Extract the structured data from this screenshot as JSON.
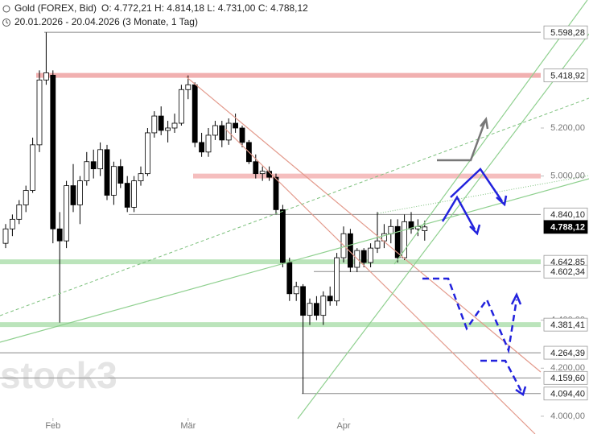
{
  "header": {
    "title": "Gold (FOREX, Bid)",
    "ohlc": "O: 4.772,21  H: 4.814,18  L: 4.731,00  C: 4.788,12",
    "range": "20.01.2026 - 20.04.2026 (3 Monate, 1 Tag)"
  },
  "chart_data": {
    "type": "candlestick",
    "watermark": "stock3",
    "categories": [
      null,
      null,
      null,
      null,
      null,
      null,
      null,
      "Feb",
      null,
      null,
      null,
      null,
      null,
      null,
      null,
      null,
      null,
      null,
      null,
      null,
      null,
      null,
      null,
      null,
      null,
      null,
      null,
      "Mär",
      null,
      null,
      null,
      null,
      null,
      null,
      null,
      null,
      null,
      null,
      null,
      null,
      null,
      null,
      null,
      null,
      null,
      null,
      null,
      null,
      null,
      null,
      "Apr",
      null,
      null,
      null,
      null,
      null,
      null,
      null,
      null,
      null,
      null,
      null,
      null
    ],
    "open": [
      4720,
      4780,
      4820,
      4880,
      4940,
      5130,
      5400,
      5420,
      4780,
      4730,
      4960,
      4880,
      4980,
      5060,
      5030,
      5110,
      4920,
      5040,
      4970,
      4870,
      4980,
      5010,
      5180,
      5250,
      5190,
      5200,
      5220,
      5360,
      5380,
      5140,
      5100,
      5170,
      5210,
      5150,
      5220,
      5200,
      5140,
      5060,
      5010,
      5020,
      4995,
      4860,
      4640,
      4510,
      4540,
      4420,
      4470,
      4420,
      4500,
      4480,
      4660,
      4760,
      4620,
      4690,
      4640,
      4700,
      4730,
      4760,
      4790,
      4660,
      4810,
      4780,
      4772.21
    ],
    "high": [
      4800,
      4840,
      4900,
      4960,
      5160,
      5440,
      5598.28,
      5440,
      4850,
      4980,
      5050,
      5000,
      5100,
      5110,
      5140,
      5130,
      5060,
      5070,
      5000,
      5000,
      5040,
      5200,
      5270,
      5290,
      5230,
      5260,
      5380,
      5418.92,
      5390,
      5180,
      5200,
      5230,
      5230,
      5240,
      5260,
      5210,
      5150,
      5090,
      5040,
      5040,
      5010,
      4880,
      4660,
      4560,
      4550,
      4490,
      4500,
      4520,
      4540,
      4680,
      4790,
      4780,
      4700,
      4700,
      4720,
      4850,
      4800,
      4820,
      4820,
      4840,
      4850,
      4820,
      4814.18
    ],
    "low": [
      4700,
      4750,
      4800,
      4850,
      4930,
      5100,
      5380,
      4720,
      4390,
      4700,
      4850,
      4800,
      4960,
      4990,
      5000,
      4900,
      4880,
      4950,
      4850,
      4850,
      4960,
      5000,
      5160,
      5170,
      5140,
      5180,
      5210,
      5320,
      5120,
      5080,
      5080,
      5150,
      5120,
      5130,
      5180,
      5120,
      5050,
      4990,
      4980,
      4980,
      4840,
      4620,
      4480,
      4480,
      4094.4,
      4380,
      4400,
      4380,
      4460,
      4460,
      4640,
      4600,
      4600,
      4620,
      4620,
      4680,
      4700,
      4720,
      4640,
      4650,
      4760,
      4750,
      4731.0
    ],
    "close": [
      4780,
      4820,
      4880,
      4940,
      5130,
      5400,
      5430,
      4780,
      4730,
      4960,
      4880,
      4980,
      5060,
      5030,
      5110,
      4920,
      5040,
      4970,
      4870,
      4980,
      5010,
      5180,
      5250,
      5190,
      5200,
      5220,
      5360,
      5380,
      5140,
      5100,
      5170,
      5210,
      5150,
      5220,
      5200,
      5140,
      5060,
      5010,
      5020,
      4995,
      4860,
      4640,
      4510,
      4540,
      4420,
      4470,
      4420,
      4500,
      4480,
      4660,
      4760,
      4620,
      4690,
      4640,
      4700,
      4730,
      4760,
      4790,
      4660,
      4810,
      4780,
      4790,
      4788.12
    ],
    "up_color": "#ffffff",
    "down_color": "#000000",
    "ylim": [
      3926,
      5733
    ],
    "yticks": [
      {
        "value": 4000,
        "label": "4.000,00"
      },
      {
        "value": 4200,
        "label": "4.200,00"
      },
      {
        "value": 4400,
        "label": "4.400,00"
      },
      {
        "value": 5000,
        "label": "5.000,00"
      },
      {
        "value": 5200,
        "label": "5.200,00"
      }
    ],
    "levels": [
      {
        "value": 5598.28,
        "label": "5.598,28",
        "color": "#888888"
      },
      {
        "value": 5418.92,
        "label": "5.418,92",
        "color": "#f0a8a8",
        "band": true
      },
      {
        "value": 5000,
        "color": "#f5b8b8",
        "band": true
      },
      {
        "value": 4840.1,
        "label": "4.840,10",
        "color": "#888888"
      },
      {
        "value": 4788.12,
        "label": "4.788,12",
        "color": "#000000",
        "current": true
      },
      {
        "value": 4642.85,
        "label": "4.642,85",
        "color": "#b4e2b4",
        "band": true
      },
      {
        "value": 4602.34,
        "label": "4.602,34",
        "color": "#888888"
      },
      {
        "value": 4381.41,
        "label": "4.381,41",
        "color": "#b4e2b4",
        "band": true
      },
      {
        "value": 4264.39,
        "label": "4.264,39",
        "color": "#888888"
      },
      {
        "value": 4159.6,
        "label": "4.159,60",
        "color": "#888888"
      },
      {
        "value": 4094.4,
        "label": "4.094,40",
        "color": "#888888"
      }
    ]
  }
}
